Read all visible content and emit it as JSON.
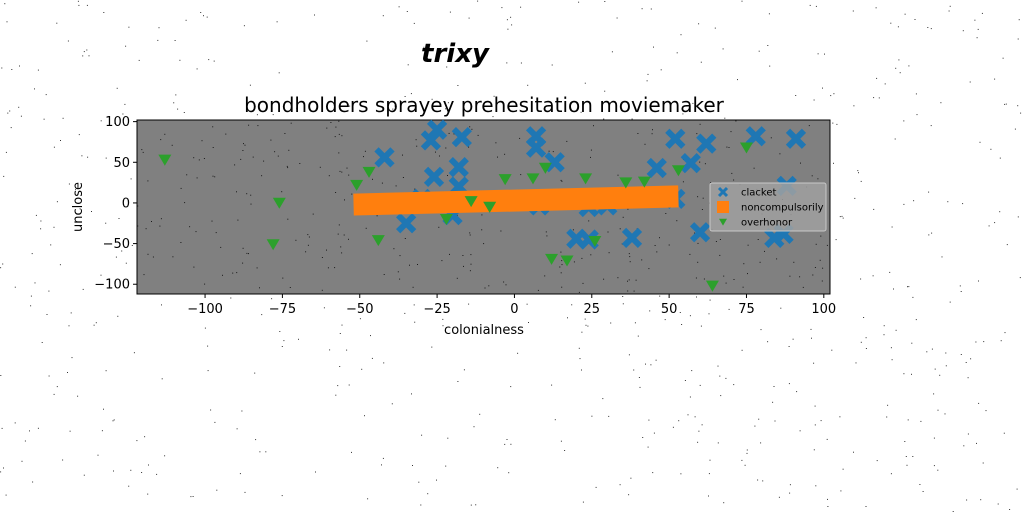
{
  "figure": {
    "suptitle": "trixy"
  },
  "chart_data": {
    "type": "scatter",
    "title": "bondholders sprayey prehesitation moviemaker",
    "xlabel": "colonialness",
    "ylabel": "unclose",
    "xlim": [
      -122,
      102
    ],
    "ylim": [
      -112,
      102
    ],
    "xticks": [
      -100,
      -75,
      -50,
      -25,
      0,
      25,
      50,
      75,
      100
    ],
    "yticks": [
      -100,
      -50,
      0,
      50,
      100
    ],
    "xtick_labels": [
      "−100",
      "−75",
      "−50",
      "−25",
      "0",
      "25",
      "50",
      "75",
      "100"
    ],
    "ytick_labels": [
      "−100",
      "−50",
      "0",
      "50",
      "100"
    ],
    "grid": false,
    "legend_position": "right",
    "background": "#808080",
    "series": [
      {
        "name": "clacket",
        "marker": "x",
        "color": "#1f77b4",
        "points": [
          [
            -25,
            90
          ],
          [
            -27,
            77
          ],
          [
            -17,
            81
          ],
          [
            7,
            82
          ],
          [
            7,
            68
          ],
          [
            13,
            50
          ],
          [
            -42,
            56
          ],
          [
            -18,
            44
          ],
          [
            -26,
            32
          ],
          [
            -18,
            20
          ],
          [
            -30,
            5
          ],
          [
            -20,
            -15
          ],
          [
            -35,
            -25
          ],
          [
            8,
            -3
          ],
          [
            24,
            -5
          ],
          [
            30,
            -3
          ],
          [
            20,
            -44
          ],
          [
            24,
            -45
          ],
          [
            38,
            -43
          ],
          [
            52,
            79
          ],
          [
            57,
            49
          ],
          [
            62,
            73
          ],
          [
            46,
            43
          ],
          [
            78,
            82
          ],
          [
            91,
            79
          ],
          [
            88,
            21
          ],
          [
            84,
            -43
          ],
          [
            87,
            -38
          ],
          [
            60,
            -36
          ],
          [
            52,
            5
          ]
        ]
      },
      {
        "name": "noncompulsorily",
        "marker": "line",
        "color": "#ff7f0e",
        "points": [
          [
            -52,
            -2
          ],
          [
            53,
            8
          ]
        ]
      },
      {
        "name": "overhonor",
        "marker": "triangle_down",
        "color": "#2ca02c",
        "points": [
          [
            -113,
            53
          ],
          [
            -76,
            0
          ],
          [
            -78,
            -51
          ],
          [
            -51,
            22
          ],
          [
            -47,
            38
          ],
          [
            -44,
            -46
          ],
          [
            -22,
            -20
          ],
          [
            -14,
            2
          ],
          [
            -8,
            -5
          ],
          [
            -3,
            29
          ],
          [
            6,
            30
          ],
          [
            10,
            43
          ],
          [
            12,
            -69
          ],
          [
            17,
            -71
          ],
          [
            23,
            30
          ],
          [
            26,
            -47
          ],
          [
            36,
            25
          ],
          [
            42,
            26
          ],
          [
            53,
            40
          ],
          [
            64,
            -102
          ],
          [
            75,
            68
          ]
        ]
      }
    ]
  }
}
